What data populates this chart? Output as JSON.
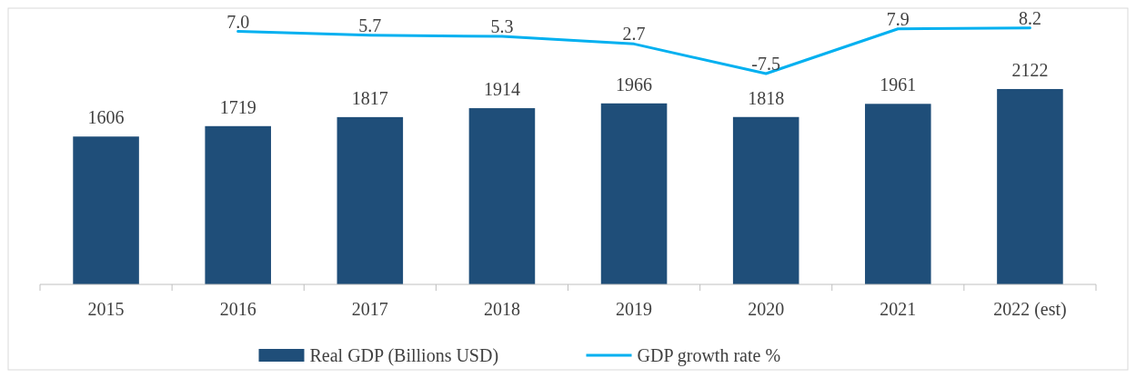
{
  "chart_data": {
    "type": "bar",
    "categories": [
      "2015",
      "2016",
      "2017",
      "2018",
      "2019",
      "2020",
      "2021",
      "2022 (est)"
    ],
    "series": [
      {
        "name": "Real GDP (Billions USD)",
        "color": "#1f4e79",
        "values": [
          1606,
          1719,
          1817,
          1914,
          1966,
          1818,
          1961,
          2122
        ]
      },
      {
        "name": "GDP growth rate %",
        "type": "line",
        "axis": "y2",
        "color": "#00b0f0",
        "values": [
          null,
          7.0,
          5.7,
          5.3,
          2.7,
          -7.5,
          7.9,
          8.2
        ],
        "value_labels": [
          null,
          "7.0",
          "5.7",
          "5.3",
          "2.7",
          "-7.5",
          "7.9",
          "8.2"
        ]
      }
    ],
    "ylim": [
      0,
      3000
    ],
    "y2lim": [
      -80,
      15
    ],
    "tick_labels": "x",
    "data_labels": true,
    "legend": "bottom"
  }
}
